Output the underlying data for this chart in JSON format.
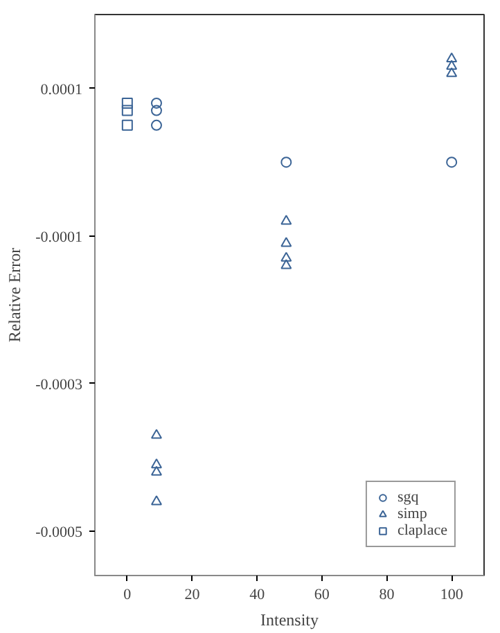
{
  "chart_data": {
    "type": "scatter",
    "xlabel": "Intensity",
    "ylabel": "Relative Error",
    "xlim": [
      -10,
      110
    ],
    "ylim": [
      -0.00056,
      0.0002
    ],
    "xticks": [
      0,
      20,
      40,
      60,
      80,
      100
    ],
    "yticks": [
      0.0001,
      -0.0001,
      -0.0003,
      -0.0005
    ],
    "legend": "bottom right",
    "grid": false,
    "series": [
      {
        "name": "sgq",
        "color": "#3b6496",
        "marker": "circle",
        "x": [
          100,
          49,
          9,
          9,
          9
        ],
        "values": [
          0,
          0,
          8e-05,
          7e-05,
          5e-05
        ]
      },
      {
        "name": "simp",
        "color": "#3b6496",
        "marker": "triangle",
        "x": [
          100,
          100,
          100,
          49,
          49,
          49,
          49,
          9,
          9,
          9,
          9
        ],
        "values": [
          0.00014,
          0.00013,
          0.00012,
          -8e-05,
          -0.00011,
          -0.00013,
          -0.00014,
          -0.00037,
          -0.00041,
          -0.00042,
          -0.00046
        ]
      },
      {
        "name": "claplace",
        "color": "#3b6496",
        "marker": "square",
        "x": [
          0,
          0,
          0
        ],
        "values": [
          8e-05,
          7e-05,
          5e-05
        ]
      }
    ]
  }
}
